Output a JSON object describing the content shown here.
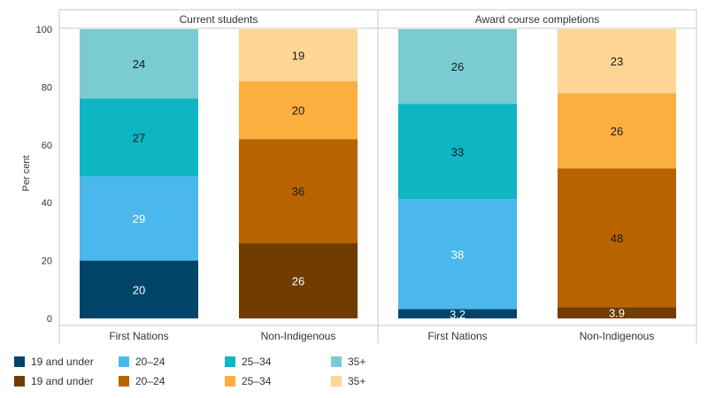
{
  "chart_data": {
    "type": "bar",
    "stacked": true,
    "ylabel": "Per cent",
    "ylim": [
      0,
      100
    ],
    "yticks": [
      0,
      20,
      40,
      60,
      80,
      100
    ],
    "grid": false,
    "legend_position": "bottom-left",
    "panels": [
      {
        "title": "Current students",
        "bars": [
          {
            "category": "First Nations",
            "group": "first_nations",
            "segments": [
              {
                "series": "19 and under",
                "value": 20,
                "label": "20"
              },
              {
                "series": "20–24",
                "value": 29,
                "label": "29"
              },
              {
                "series": "25–34",
                "value": 27,
                "label": "27"
              },
              {
                "series": "35+",
                "value": 24,
                "label": "24"
              }
            ]
          },
          {
            "category": "Non-Indigenous",
            "group": "non_indigenous",
            "segments": [
              {
                "series": "19 and under",
                "value": 26,
                "label": "26"
              },
              {
                "series": "20–24",
                "value": 36,
                "label": "36"
              },
              {
                "series": "25–34",
                "value": 20,
                "label": "20"
              },
              {
                "series": "35+",
                "value": 19,
                "label": "19"
              }
            ]
          }
        ]
      },
      {
        "title": "Award course completions",
        "bars": [
          {
            "category": "First Nations",
            "group": "first_nations",
            "segments": [
              {
                "series": "19 and under",
                "value": 3.2,
                "label": "3.2"
              },
              {
                "series": "20–24",
                "value": 38,
                "label": "38"
              },
              {
                "series": "25–34",
                "value": 33,
                "label": "33"
              },
              {
                "series": "35+",
                "value": 26,
                "label": "26"
              }
            ]
          },
          {
            "category": "Non-Indigenous",
            "group": "non_indigenous",
            "segments": [
              {
                "series": "19 and under",
                "value": 3.9,
                "label": "3.9"
              },
              {
                "series": "20–24",
                "value": 48,
                "label": "48"
              },
              {
                "series": "25–34",
                "value": 26,
                "label": "26"
              },
              {
                "series": "35+",
                "value": 23,
                "label": "23"
              }
            ]
          }
        ]
      }
    ],
    "colors": {
      "first_nations": {
        "19 and under": "#00446a",
        "20–24": "#4bb8ed",
        "25–34": "#0eb5c3",
        "35+": "#7acbd2"
      },
      "non_indigenous": {
        "19 and under": "#703c00",
        "20–24": "#b86200",
        "25–34": "#fbaf3f",
        "35+": "#fed594"
      }
    },
    "label_colors": {
      "first_nations": {
        "19 and under": "#ffffff",
        "20–24": "#ffffff",
        "25–34": "#1a1a1a",
        "35+": "#1a1a1a"
      },
      "non_indigenous": {
        "19 and under": "#ffffff",
        "20–24": "#1a1a1a",
        "25–34": "#1a1a1a",
        "35+": "#1a1a1a"
      }
    },
    "legend": [
      {
        "group": "first_nations",
        "items": [
          "19 and under",
          "20–24",
          "25–34",
          "35+"
        ]
      },
      {
        "group": "non_indigenous",
        "items": [
          "19 and under",
          "20–24",
          "25–34",
          "35+"
        ]
      }
    ]
  }
}
